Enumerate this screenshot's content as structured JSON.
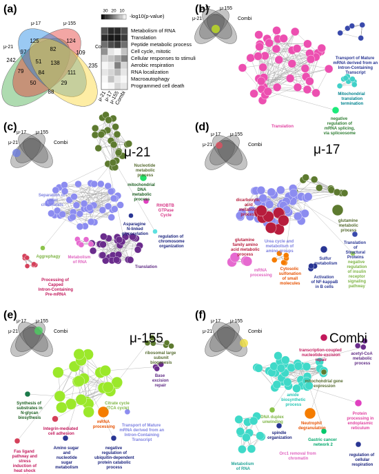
{
  "panels": {
    "a": {
      "label": "(a)",
      "venn": {
        "sets": [
          "μ-17",
          "μ-155",
          "μ-21",
          "Combi"
        ],
        "counts": [
          125,
          82,
          124,
          242,
          97,
          51,
          138,
          109,
          235,
          79,
          84,
          111,
          50,
          29,
          88
        ]
      },
      "heatmap": {
        "colorbar_title": "-log10(p-value)",
        "clim": [
          5,
          35
        ],
        "cticks": [
          30,
          20,
          10
        ],
        "rows": [
          "Metabolism of RNA",
          "Translation",
          "Peptide metabolic process",
          "Cell cycle, mitotic",
          "Cellular responses to stimuli",
          "Aerobic respiration",
          "RNA localization",
          "Macroautophagy",
          "Programmed cell death"
        ],
        "columns": [
          "μ-21",
          "μ-17",
          "μ-155",
          "Combi"
        ],
        "values": [
          [
            25,
            30,
            30,
            26
          ],
          [
            30,
            32,
            32,
            28
          ],
          [
            22,
            26,
            28,
            22
          ],
          [
            18,
            8,
            6,
            12
          ],
          [
            10,
            12,
            15,
            20
          ],
          [
            6,
            8,
            20,
            10
          ],
          [
            8,
            10,
            13,
            8
          ],
          [
            6,
            12,
            8,
            6
          ],
          [
            5,
            6,
            10,
            8
          ]
        ]
      }
    },
    "b": {
      "label": "(b)",
      "venn_sets": [
        "μ-17",
        "μ-155",
        "μ-21",
        "Combi"
      ],
      "terms": [
        "Translation",
        "Transport of Mature mRNA derived from an Intron-Containing Transcript",
        "Mitochondrial translation termination",
        "negative regulation of mRNA splicing, via spliceosome"
      ]
    },
    "c": {
      "label": "(c)",
      "title": "μ-21",
      "venn_sets": [
        "μ-17",
        "μ-155",
        "μ-21",
        "Combi"
      ],
      "terms": [
        "Nucleotide metabolic process",
        "mitochondrial DNA metabolic process",
        "Separation of sister chromatids",
        "RHOBTB GTPase Cycle",
        "Asparagine N-linked glycosylation",
        "regulation of chromosome organization",
        "Aggrephagy",
        "Metabolism of RNA",
        "Translation",
        "Processing of Capped Intron-Containing Pre-mRNA"
      ]
    },
    "d": {
      "label": "(d)",
      "title": "μ-17",
      "venn_sets": [
        "μ-17",
        "μ-155",
        "μ-21",
        "Combi"
      ],
      "terms": [
        "dicarboxylic acid metabolic process",
        "glutamine metabolic process",
        "glutamine family amino acid metabolic process",
        "Urea cycle and metabolism of amino groups",
        "Translation of Structural Proteins",
        "negative regulation of insulin receptor signaling pathway",
        "Sulfur metabolism",
        "mRNA processing",
        "Cytosolic sulfonation of small molecules",
        "Activation of NF-kappaB in B cells"
      ]
    },
    "e": {
      "label": "(e)",
      "title": "μ-155",
      "venn_sets": [
        "μ-17",
        "μ-155",
        "μ-21",
        "Combi"
      ],
      "terms": [
        "ribosomal large subunit biogenesis",
        "Base excision repair",
        "Citrate cycle (TCA cycle)",
        "Synthesis of substrates in N-glycan biosythesis",
        "mRNA processing",
        "Integrin-mediated cell adhesion",
        "Transport of Mature mRNA derived from an Intron-Containing Transcript",
        "Fas ligand pathway and stress induction of heat shock proteins",
        "Amino sugar and nucleotide sugar metabolism",
        "negative regulation of ubiquitin-dependent protein catabolic process"
      ]
    },
    "f": {
      "label": "(f)",
      "title": "Combi",
      "venn_sets": [
        "μ-17",
        "μ-155",
        "μ-21",
        "Combi"
      ],
      "terms": [
        "transcription-coupled nucleotide-excision repair",
        "acetyl-CoA metabolic process",
        "mitochondrial gene expression",
        "amide biosynthetic process",
        "DNA duplex unwinding",
        "Neutrophil degranulation",
        "Protein processing in endoplasmic reticulum",
        "spindle organization",
        "Gastric cancer network 2",
        "Orc1 removal from chromatin",
        "regulation of cellular respiration",
        "Metabolism of RNA"
      ]
    }
  }
}
